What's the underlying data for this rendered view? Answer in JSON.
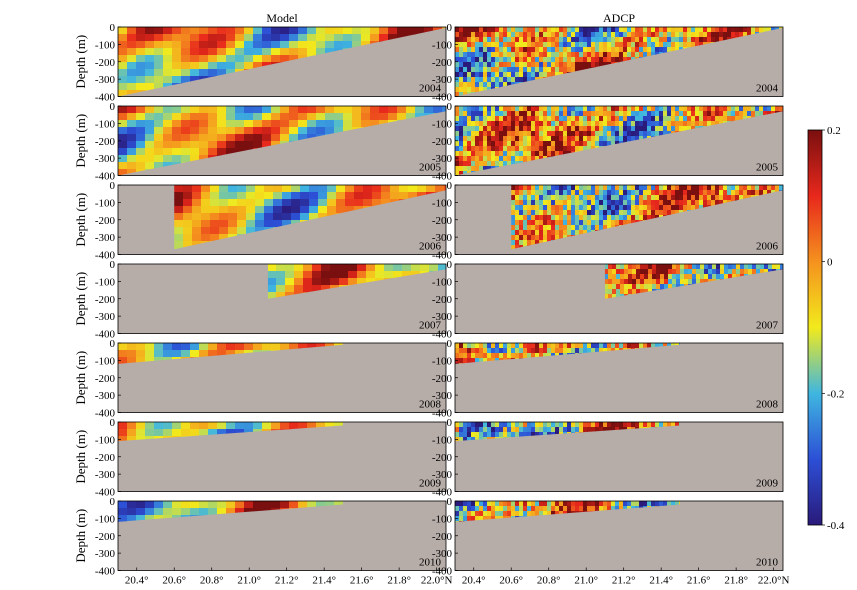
{
  "chart_data": {
    "type": "heatmap",
    "column_titles": [
      "Model",
      "ADCP"
    ],
    "years": [
      "2004",
      "2005",
      "2006",
      "2007",
      "2008",
      "2009",
      "2010"
    ],
    "ylabel": "Depth (m)",
    "y_ticks": [
      "0",
      "-100",
      "-200",
      "-300",
      "-400"
    ],
    "ylim": [
      -400,
      0
    ],
    "xlim": [
      20.3,
      22.05
    ],
    "x_ticks": [
      {
        "value": 20.4,
        "label": "20.4°"
      },
      {
        "value": 20.6,
        "label": "20.6°"
      },
      {
        "value": 20.8,
        "label": "20.8°"
      },
      {
        "value": 21.0,
        "label": "21.0°"
      },
      {
        "value": 21.2,
        "label": "21.2°"
      },
      {
        "value": 21.4,
        "label": "21.4°"
      },
      {
        "value": 21.6,
        "label": "21.6°"
      },
      {
        "value": 21.8,
        "label": "21.8°"
      },
      {
        "value": 22.0,
        "label": "22.0°N"
      }
    ],
    "colorbar": {
      "range": [
        -0.4,
        0.2
      ],
      "ticks": [
        {
          "value": 0.2,
          "label": "0.2"
        },
        {
          "value": 0,
          "label": "0"
        },
        {
          "value": -0.2,
          "label": "-0.2"
        },
        {
          "value": -0.4,
          "label": "-0.4"
        }
      ],
      "colors": [
        "#2a1a7a",
        "#2c4fd6",
        "#3fb6e0",
        "#f2ea1c",
        "#f5921e",
        "#e8281c",
        "#7a0f0f"
      ]
    },
    "land_color": "#b6aca8",
    "sections": {
      "2004": {
        "x_start": 20.3,
        "x_end": 22.05,
        "depth_start": -400,
        "depth_end": -5
      },
      "2005": {
        "x_start": 20.3,
        "x_end": 22.05,
        "depth_start": -400,
        "depth_end": -30
      },
      "2006": {
        "x_start": 20.6,
        "x_end": 22.05,
        "depth_start": -370,
        "depth_end": -30
      },
      "2007": {
        "x_start": 21.1,
        "x_end": 22.05,
        "depth_start": -200,
        "depth_end": -30
      },
      "2008": {
        "x_start": 20.3,
        "x_end": 21.5,
        "depth_start": -120,
        "depth_end": -10
      },
      "2009": {
        "x_start": 20.3,
        "x_end": 21.5,
        "depth_start": -110,
        "depth_end": -20
      },
      "2010": {
        "x_start": 20.3,
        "x_end": 21.5,
        "depth_start": -120,
        "depth_end": -20
      }
    }
  }
}
